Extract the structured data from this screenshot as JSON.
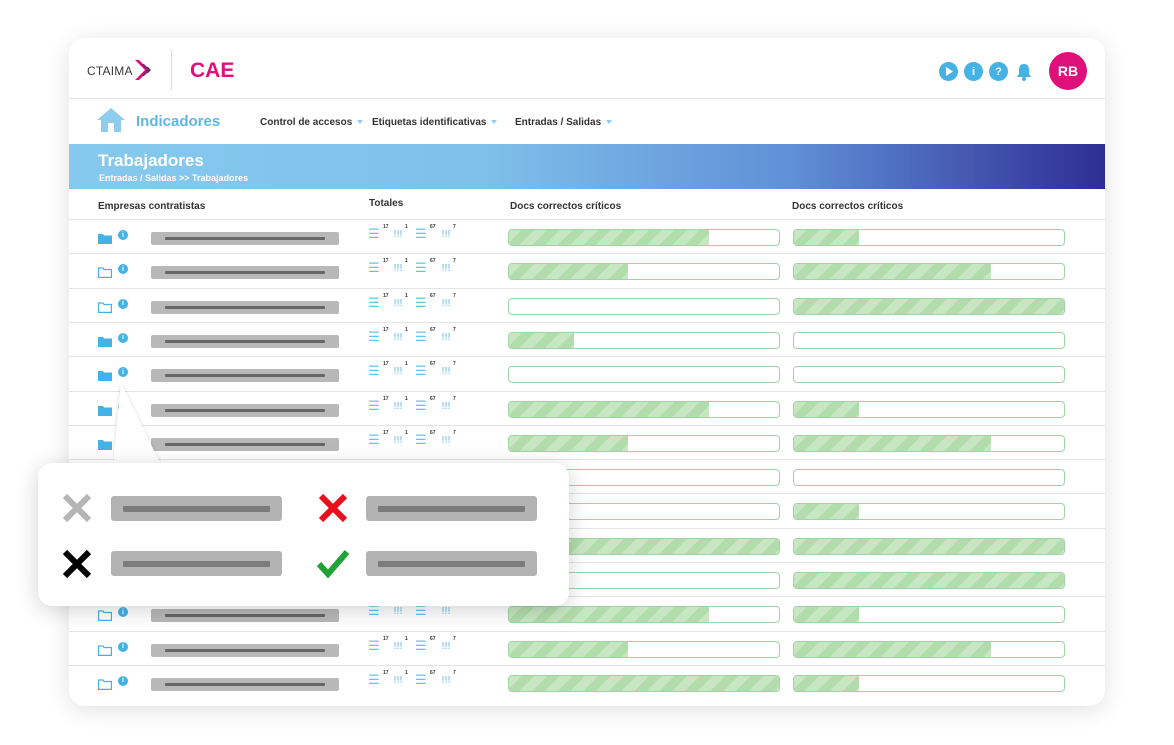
{
  "header": {
    "logo_text": "CTAIMA",
    "app_title": "CAE",
    "icons": [
      "play-icon",
      "info-icon",
      "help-icon",
      "bell-icon"
    ],
    "avatar_initials": "RB",
    "brand_color": "#e0107a",
    "accent_color": "#45b2e5"
  },
  "nav": {
    "title": "Indicadores",
    "menus": [
      {
        "label": "Control de accesos"
      },
      {
        "label": "Etiquetas identificativas"
      },
      {
        "label": "Entradas / Salidas"
      }
    ]
  },
  "banner": {
    "title": "Trabajadores",
    "breadcrumb": "Entradas / Salidas >> Trabajadores"
  },
  "table": {
    "columns": [
      "Empresas contratistas",
      "Totales",
      "Docs correctos críticos",
      "Docs correctos críticos"
    ],
    "totals_digits": [
      "17",
      "1",
      "67",
      "7"
    ],
    "rows": [
      {
        "folder": "filled",
        "docs_a": 0.74,
        "docs_b": 0.24
      },
      {
        "folder": "outline",
        "docs_a": 0.44,
        "docs_b": 0.73
      },
      {
        "folder": "outline",
        "docs_a": 0.0,
        "docs_b": 1.0
      },
      {
        "folder": "filled",
        "docs_a": 0.24,
        "docs_b": 0.0
      },
      {
        "folder": "filled",
        "docs_a": 0.0,
        "docs_b": 0.0
      },
      {
        "folder": "filled",
        "docs_a": 0.74,
        "docs_b": 0.24
      },
      {
        "folder": "filled",
        "docs_a": 0.44,
        "docs_b": 0.73
      },
      {
        "folder": "filled",
        "docs_a": 0.0,
        "docs_b": 0.0
      },
      {
        "folder": "filled",
        "docs_a": 0.0,
        "docs_b": 0.24
      },
      {
        "folder": "filled",
        "docs_a": 1.0,
        "docs_b": 1.0
      },
      {
        "folder": "filled",
        "docs_a": 0.0,
        "docs_b": 1.0
      },
      {
        "folder": "outline",
        "docs_a": 0.74,
        "docs_b": 0.24
      },
      {
        "folder": "outline",
        "docs_a": 0.44,
        "docs_b": 0.73
      },
      {
        "folder": "outline",
        "docs_a": 1.0,
        "docs_b": 0.24
      }
    ]
  },
  "legend": {
    "items": [
      {
        "icon": "gray-x-icon",
        "color": "#b5b5b5"
      },
      {
        "icon": "red-x-icon",
        "color": "#e8101c"
      },
      {
        "icon": "black-x-icon",
        "color": "#000000"
      },
      {
        "icon": "green-check-icon",
        "color": "#1fa336"
      }
    ]
  }
}
